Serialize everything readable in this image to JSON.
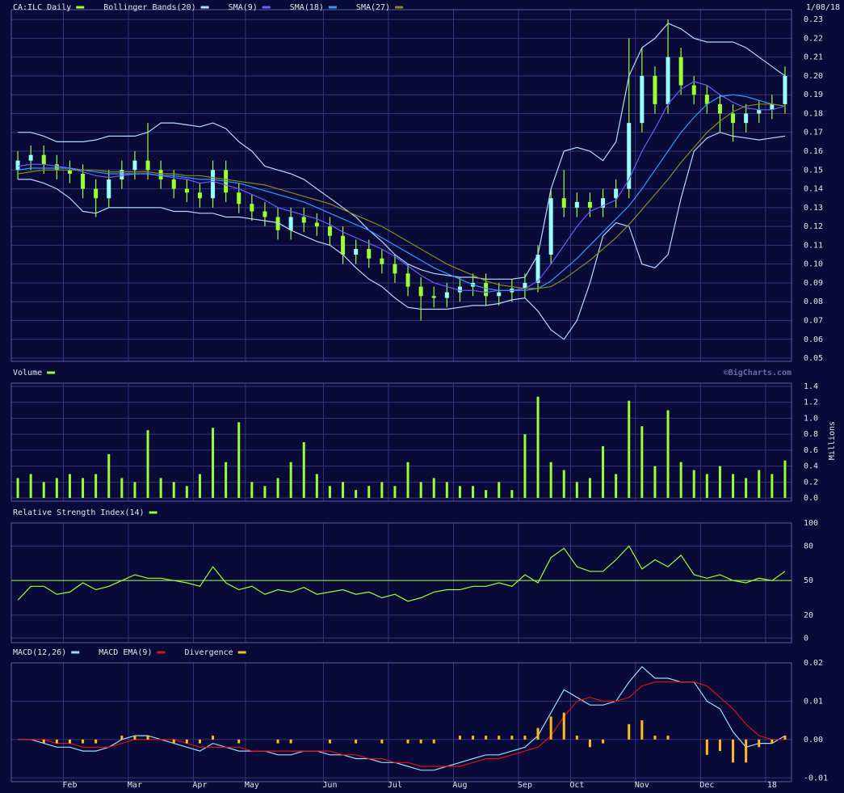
{
  "chart_data": [
    {
      "type": "ohlc",
      "date": "1/08/18",
      "ylim": [
        0.0483,
        0.2352
      ],
      "yticks": [
        0.05,
        0.06,
        0.07,
        0.08,
        0.09,
        {
          "value": 0.1,
          "label": "0.10"
        },
        0.11,
        0.12,
        0.13,
        0.14,
        0.15,
        0.16,
        0.17,
        0.18,
        0.19,
        {
          "value": 0.2,
          "label": "0.20"
        },
        0.21,
        0.22,
        0.23
      ],
      "grid": true,
      "series": [
        {
          "name": "CA:ILC Daily",
          "type": "ohlc",
          "color": "#99ff33",
          "body_color": "#99ffff",
          "open": [
            0.15,
            0.155,
            0.158,
            0.153,
            0.15,
            0.148,
            0.14,
            0.135,
            0.145,
            0.15,
            0.155,
            0.15,
            0.145,
            0.14,
            0.138,
            0.135,
            0.15,
            0.138,
            0.132,
            0.128,
            0.125,
            0.118,
            0.125,
            0.122,
            0.12,
            0.115,
            0.105,
            0.108,
            0.103,
            0.1,
            0.095,
            0.088,
            0.083,
            0.082,
            0.085,
            0.088,
            0.09,
            0.083,
            0.085,
            0.087,
            0.09,
            0.105,
            0.135,
            0.13,
            0.133,
            0.13,
            0.135,
            0.14,
            0.175,
            0.2,
            0.185,
            0.21,
            0.195,
            0.19,
            0.185,
            0.18,
            0.175,
            0.18,
            0.182,
            0.185
          ],
          "high": [
            0.16,
            0.163,
            0.163,
            0.158,
            0.155,
            0.153,
            0.145,
            0.15,
            0.155,
            0.16,
            0.175,
            0.155,
            0.15,
            0.145,
            0.143,
            0.155,
            0.155,
            0.143,
            0.137,
            0.133,
            0.13,
            0.13,
            0.13,
            0.127,
            0.125,
            0.12,
            0.113,
            0.113,
            0.108,
            0.105,
            0.1,
            0.093,
            0.088,
            0.09,
            0.093,
            0.095,
            0.095,
            0.09,
            0.092,
            0.095,
            0.11,
            0.14,
            0.15,
            0.138,
            0.138,
            0.14,
            0.145,
            0.22,
            0.215,
            0.205,
            0.23,
            0.215,
            0.2,
            0.195,
            0.19,
            0.185,
            0.185,
            0.187,
            0.19,
            0.205
          ],
          "low": [
            0.145,
            0.15,
            0.148,
            0.145,
            0.143,
            0.135,
            0.125,
            0.13,
            0.14,
            0.145,
            0.145,
            0.14,
            0.135,
            0.133,
            0.13,
            0.13,
            0.133,
            0.127,
            0.123,
            0.12,
            0.113,
            0.113,
            0.117,
            0.115,
            0.11,
            0.1,
            0.1,
            0.098,
            0.095,
            0.09,
            0.083,
            0.07,
            0.077,
            0.077,
            0.08,
            0.083,
            0.078,
            0.078,
            0.08,
            0.082,
            0.085,
            0.1,
            0.125,
            0.125,
            0.125,
            0.125,
            0.13,
            0.135,
            0.17,
            0.18,
            0.18,
            0.19,
            0.185,
            0.18,
            0.17,
            0.165,
            0.17,
            0.175,
            0.177,
            0.18
          ],
          "close": [
            0.155,
            0.158,
            0.153,
            0.15,
            0.148,
            0.14,
            0.135,
            0.145,
            0.15,
            0.155,
            0.15,
            0.145,
            0.14,
            0.138,
            0.135,
            0.15,
            0.138,
            0.132,
            0.128,
            0.125,
            0.118,
            0.125,
            0.122,
            0.12,
            0.115,
            0.105,
            0.108,
            0.103,
            0.1,
            0.095,
            0.088,
            0.083,
            0.082,
            0.085,
            0.088,
            0.09,
            0.083,
            0.085,
            0.087,
            0.09,
            0.105,
            0.135,
            0.13,
            0.133,
            0.13,
            0.135,
            0.14,
            0.175,
            0.2,
            0.185,
            0.21,
            0.195,
            0.19,
            0.185,
            0.18,
            0.175,
            0.18,
            0.182,
            0.185,
            0.2
          ]
        },
        {
          "name": "Bollinger Bands(20)",
          "type": "band",
          "color": "#b8d8ff",
          "upper": [
            0.17,
            0.17,
            0.168,
            0.165,
            0.165,
            0.165,
            0.166,
            0.168,
            0.168,
            0.168,
            0.17,
            0.175,
            0.175,
            0.174,
            0.173,
            0.175,
            0.172,
            0.165,
            0.16,
            0.152,
            0.15,
            0.148,
            0.145,
            0.14,
            0.135,
            0.13,
            0.125,
            0.118,
            0.112,
            0.105,
            0.1,
            0.097,
            0.095,
            0.094,
            0.093,
            0.093,
            0.092,
            0.092,
            0.092,
            0.093,
            0.105,
            0.14,
            0.16,
            0.162,
            0.16,
            0.155,
            0.165,
            0.2,
            0.215,
            0.22,
            0.228,
            0.225,
            0.22,
            0.218,
            0.218,
            0.218,
            0.215,
            0.21,
            0.205,
            0.2
          ],
          "lower": [
            0.145,
            0.145,
            0.143,
            0.14,
            0.135,
            0.128,
            0.127,
            0.13,
            0.13,
            0.13,
            0.13,
            0.13,
            0.128,
            0.128,
            0.127,
            0.127,
            0.125,
            0.125,
            0.124,
            0.123,
            0.122,
            0.118,
            0.115,
            0.112,
            0.11,
            0.105,
            0.098,
            0.092,
            0.088,
            0.082,
            0.077,
            0.076,
            0.076,
            0.076,
            0.077,
            0.078,
            0.078,
            0.079,
            0.081,
            0.082,
            0.075,
            0.065,
            0.06,
            0.07,
            0.09,
            0.115,
            0.122,
            0.12,
            0.1,
            0.098,
            0.105,
            0.135,
            0.16,
            0.167,
            0.17,
            0.168,
            0.167,
            0.166,
            0.167,
            0.168
          ]
        },
        {
          "name": "SMA(9)",
          "type": "line",
          "color": "#6a5cff",
          "values": [
            0.152,
            0.153,
            0.153,
            0.152,
            0.151,
            0.149,
            0.147,
            0.146,
            0.147,
            0.148,
            0.148,
            0.147,
            0.146,
            0.145,
            0.143,
            0.144,
            0.142,
            0.14,
            0.137,
            0.134,
            0.13,
            0.128,
            0.126,
            0.124,
            0.121,
            0.117,
            0.114,
            0.111,
            0.108,
            0.104,
            0.099,
            0.094,
            0.09,
            0.088,
            0.086,
            0.086,
            0.085,
            0.086,
            0.086,
            0.087,
            0.091,
            0.1,
            0.11,
            0.12,
            0.128,
            0.131,
            0.134,
            0.145,
            0.16,
            0.172,
            0.185,
            0.193,
            0.197,
            0.195,
            0.19,
            0.186,
            0.183,
            0.182,
            0.182,
            0.184
          ]
        },
        {
          "name": "SMA(18)",
          "type": "line",
          "color": "#3399ff",
          "values": [
            0.15,
            0.151,
            0.151,
            0.151,
            0.151,
            0.15,
            0.149,
            0.148,
            0.148,
            0.148,
            0.148,
            0.147,
            0.147,
            0.146,
            0.145,
            0.145,
            0.144,
            0.143,
            0.141,
            0.139,
            0.137,
            0.135,
            0.133,
            0.13,
            0.127,
            0.124,
            0.121,
            0.118,
            0.114,
            0.11,
            0.106,
            0.102,
            0.098,
            0.095,
            0.092,
            0.089,
            0.087,
            0.086,
            0.086,
            0.086,
            0.087,
            0.091,
            0.097,
            0.103,
            0.11,
            0.117,
            0.124,
            0.131,
            0.14,
            0.15,
            0.16,
            0.17,
            0.178,
            0.185,
            0.189,
            0.19,
            0.189,
            0.187,
            0.185,
            0.184
          ]
        },
        {
          "name": "SMA(27)",
          "type": "line",
          "color": "#8a8a1a",
          "values": [
            0.148,
            0.149,
            0.15,
            0.15,
            0.15,
            0.15,
            0.15,
            0.149,
            0.149,
            0.149,
            0.149,
            0.148,
            0.148,
            0.147,
            0.147,
            0.146,
            0.145,
            0.144,
            0.143,
            0.142,
            0.14,
            0.138,
            0.136,
            0.134,
            0.132,
            0.129,
            0.126,
            0.123,
            0.12,
            0.116,
            0.112,
            0.108,
            0.104,
            0.1,
            0.097,
            0.094,
            0.091,
            0.089,
            0.088,
            0.087,
            0.087,
            0.088,
            0.092,
            0.097,
            0.102,
            0.108,
            0.114,
            0.121,
            0.129,
            0.137,
            0.145,
            0.154,
            0.162,
            0.17,
            0.176,
            0.181,
            0.184,
            0.185,
            0.185,
            0.184
          ]
        }
      ]
    },
    {
      "type": "bar",
      "watermark": "©BigCharts.com",
      "ylabel": "Millions",
      "ylim": [
        -0.04,
        1.44
      ],
      "yticks": [
        {
          "value": 0,
          "label": "0.0"
        },
        0.2,
        0.4,
        0.6,
        0.8,
        {
          "value": 1,
          "label": "1.0"
        },
        1.2,
        1.4
      ],
      "grid": true,
      "series": [
        {
          "name": "Volume",
          "type": "bar",
          "color": "#99ff33",
          "values": [
            0.25,
            0.3,
            0.2,
            0.25,
            0.3,
            0.25,
            0.3,
            0.55,
            0.25,
            0.2,
            0.85,
            0.25,
            0.2,
            0.15,
            0.3,
            0.88,
            0.45,
            0.95,
            0.2,
            0.15,
            0.25,
            0.45,
            0.7,
            0.3,
            0.15,
            0.2,
            0.1,
            0.15,
            0.2,
            0.15,
            0.45,
            0.2,
            0.25,
            0.2,
            0.15,
            0.15,
            0.1,
            0.2,
            0.1,
            0.8,
            1.27,
            0.45,
            0.35,
            0.2,
            0.25,
            0.65,
            0.3,
            1.22,
            0.9,
            0.4,
            1.1,
            0.45,
            0.35,
            0.3,
            0.4,
            0.3,
            0.25,
            0.35,
            0.3,
            0.47
          ]
        }
      ]
    },
    {
      "type": "line",
      "ylim": [
        -4,
        100
      ],
      "yticks": [
        0,
        20,
        50,
        80,
        100
      ],
      "grid": true,
      "hline": 50,
      "series": [
        {
          "name": "Relative Strength Index(14)",
          "type": "line",
          "color": "#99ff33",
          "values": [
            33,
            45,
            45,
            38,
            40,
            48,
            42,
            45,
            50,
            55,
            52,
            52,
            50,
            48,
            45,
            62,
            48,
            42,
            45,
            38,
            42,
            40,
            44,
            38,
            40,
            42,
            38,
            40,
            35,
            38,
            32,
            35,
            40,
            42,
            42,
            45,
            45,
            48,
            45,
            55,
            48,
            70,
            78,
            62,
            58,
            58,
            68,
            80,
            60,
            68,
            62,
            72,
            55,
            52,
            55,
            50,
            48,
            52,
            50,
            58
          ]
        }
      ]
    },
    {
      "type": "line",
      "ylim": [
        -0.011,
        0.02
      ],
      "yticks": [
        -0.01,
        {
          "value": 0,
          "label": "0.00"
        },
        0.01,
        0.02
      ],
      "grid": true,
      "categories": [
        null,
        null,
        null,
        null,
        "Feb",
        null,
        null,
        null,
        null,
        "Mar",
        null,
        null,
        null,
        null,
        "Apr",
        null,
        null,
        null,
        "May",
        null,
        null,
        null,
        null,
        null,
        "Jun",
        null,
        null,
        null,
        null,
        "Jul",
        null,
        null,
        null,
        null,
        "Aug",
        null,
        null,
        null,
        null,
        "Sep",
        null,
        null,
        null,
        "Oct",
        null,
        null,
        null,
        null,
        "Nov",
        null,
        null,
        null,
        null,
        "Dec",
        null,
        null,
        null,
        null,
        "18",
        null
      ],
      "series": [
        {
          "name": "MACD(12,26)",
          "type": "line",
          "color": "#99ddff",
          "values": [
            0.0,
            0.0,
            -0.001,
            -0.002,
            -0.002,
            -0.003,
            -0.003,
            -0.002,
            0.0,
            0.001,
            0.001,
            0.0,
            -0.001,
            -0.002,
            -0.003,
            -0.001,
            -0.002,
            -0.003,
            -0.003,
            -0.003,
            -0.004,
            -0.004,
            -0.003,
            -0.003,
            -0.004,
            -0.004,
            -0.005,
            -0.005,
            -0.006,
            -0.006,
            -0.007,
            -0.008,
            -0.008,
            -0.007,
            -0.006,
            -0.005,
            -0.004,
            -0.004,
            -0.003,
            -0.002,
            0.001,
            0.007,
            0.013,
            0.011,
            0.009,
            0.009,
            0.01,
            0.015,
            0.019,
            0.016,
            0.016,
            0.015,
            0.015,
            0.01,
            0.008,
            0.002,
            -0.002,
            -0.001,
            -0.001,
            0.001
          ]
        },
        {
          "name": "MACD EMA(9)",
          "type": "line",
          "color": "#dd1111",
          "values": [
            0.0,
            0.0,
            0.0,
            -0.001,
            -0.001,
            -0.002,
            -0.002,
            -0.002,
            -0.001,
            0.0,
            0.0,
            0.0,
            0.0,
            -0.001,
            -0.002,
            -0.002,
            -0.002,
            -0.002,
            -0.003,
            -0.003,
            -0.003,
            -0.003,
            -0.003,
            -0.003,
            -0.003,
            -0.004,
            -0.004,
            -0.005,
            -0.005,
            -0.006,
            -0.006,
            -0.007,
            -0.007,
            -0.007,
            -0.007,
            -0.006,
            -0.005,
            -0.005,
            -0.004,
            -0.003,
            -0.002,
            0.001,
            0.006,
            0.01,
            0.011,
            0.01,
            0.01,
            0.011,
            0.014,
            0.015,
            0.015,
            0.015,
            0.015,
            0.014,
            0.011,
            0.008,
            0.004,
            0.001,
            0.0,
            0.0
          ]
        },
        {
          "name": "Divergence",
          "type": "bar",
          "color": "#ffbb22",
          "values": [
            0.0,
            0.0,
            -0.001,
            -0.001,
            -0.001,
            -0.001,
            -0.001,
            0.0,
            0.001,
            0.001,
            0.001,
            0.0,
            -0.001,
            -0.001,
            -0.001,
            0.001,
            0.0,
            -0.001,
            0.0,
            0.0,
            -0.001,
            -0.001,
            0.0,
            0.0,
            -0.001,
            0.0,
            -0.001,
            0.0,
            -0.001,
            0.0,
            -0.001,
            -0.001,
            -0.001,
            0.0,
            0.001,
            0.001,
            0.001,
            0.001,
            0.001,
            0.001,
            0.003,
            0.006,
            0.007,
            0.001,
            -0.002,
            -0.001,
            0.0,
            0.004,
            0.005,
            0.001,
            0.001,
            0.0,
            0.0,
            -0.004,
            -0.003,
            -0.006,
            -0.006,
            -0.002,
            -0.001,
            0.001
          ]
        }
      ]
    }
  ]
}
